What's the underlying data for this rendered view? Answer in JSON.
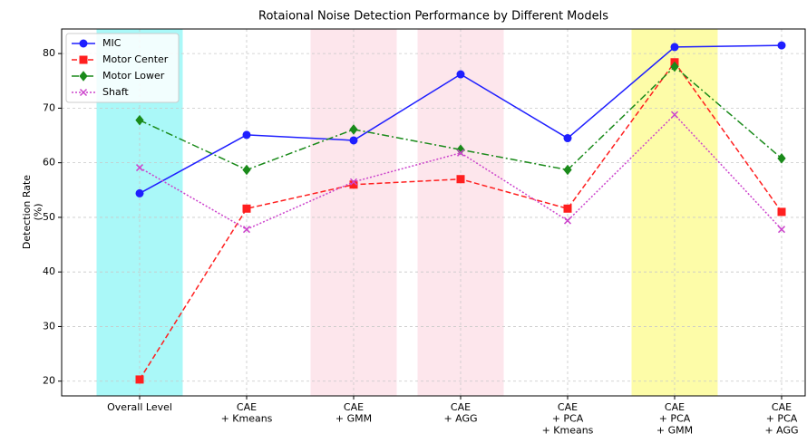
{
  "chart_data": {
    "type": "line",
    "title": "Rotaional Noise Detection Performance by Different Models",
    "y_label": "Detection Rate\n(%)",
    "categories": [
      "Overall Level",
      "CAE\n+ Kmeans",
      "CAE\n+ GMM",
      "CAE\n+ AGG",
      "CAE\n+ PCA\n+ Kmeans",
      "CAE\n+ PCA\n+ GMM",
      "CAE\n+ PCA\n+ AGG"
    ],
    "highlights": [
      {
        "category": 0,
        "color": "#aaf8f8"
      },
      {
        "category": 2,
        "color": "#fde6ec"
      },
      {
        "category": 3,
        "color": "#fde6ec"
      },
      {
        "category": 5,
        "color": "#fdfca8"
      }
    ],
    "series": [
      {
        "name": "MIC",
        "color": "#1f1fff",
        "marker": "circle",
        "linestyle": "solid",
        "values": [
          54.4,
          65.1,
          64.1,
          76.2,
          64.5,
          81.2,
          81.5
        ]
      },
      {
        "name": "Motor Center",
        "color": "#ff1f1f",
        "marker": "square",
        "linestyle": "dashed",
        "values": [
          20.3,
          51.6,
          56.0,
          57.0,
          51.6,
          78.4,
          51.0
        ]
      },
      {
        "name": "Motor Lower",
        "color": "#1a8a1a",
        "marker": "diamond",
        "linestyle": "dashdot",
        "values": [
          67.8,
          58.7,
          66.1,
          62.4,
          58.7,
          77.6,
          60.8
        ]
      },
      {
        "name": "Shaft",
        "color": "#cc44cc",
        "marker": "x",
        "linestyle": "dotted",
        "values": [
          59.1,
          47.8,
          56.5,
          61.8,
          49.4,
          68.8,
          47.8
        ]
      }
    ],
    "ylim": [
      17.3,
      84.5
    ],
    "yticks": [
      20,
      30,
      40,
      50,
      60,
      70,
      80
    ],
    "grid": true,
    "legend": "upper left"
  }
}
